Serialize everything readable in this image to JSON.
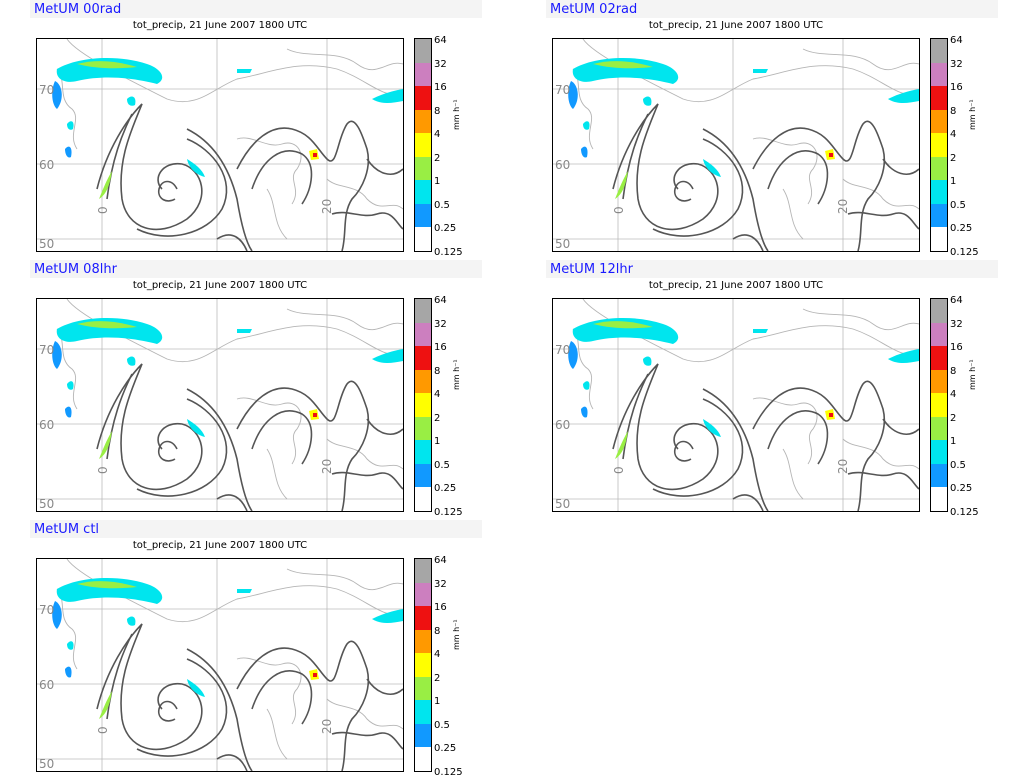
{
  "plot_title": "tot_precip, 21 June 2007 1800 UTC",
  "units": "mm h⁻¹",
  "colorbar": {
    "labels": [
      "64",
      "32",
      "16",
      "8",
      "4",
      "2",
      "1",
      "0.5",
      "0.25",
      "0.125"
    ],
    "colors": [
      "#a6a6a6",
      "#cc7fbf",
      "#ee1111",
      "#ff9900",
      "#ffff00",
      "#99ee44",
      "#00e5ee",
      "#1199ff",
      "#ffffff"
    ]
  },
  "map_labels": {
    "lat_70": "70",
    "lat_60": "60",
    "lat_50": "50",
    "lon_20": "20",
    "lon_0": "0"
  },
  "panels": [
    {
      "name": "MetUM 00rad"
    },
    {
      "name": "MetUM 02rad"
    },
    {
      "name": "MetUM 08lhr"
    },
    {
      "name": "MetUM 12lhr"
    },
    {
      "name": "MetUM ctl"
    }
  ]
}
